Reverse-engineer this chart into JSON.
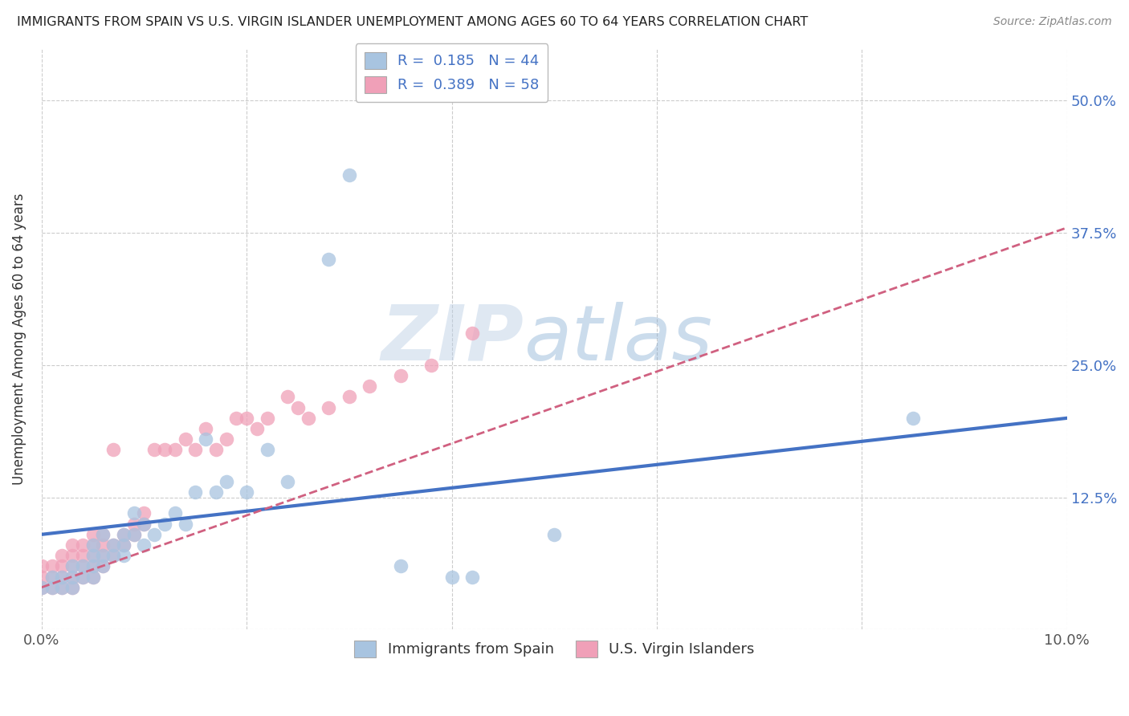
{
  "title": "IMMIGRANTS FROM SPAIN VS U.S. VIRGIN ISLANDER UNEMPLOYMENT AMONG AGES 60 TO 64 YEARS CORRELATION CHART",
  "source": "Source: ZipAtlas.com",
  "ylabel": "Unemployment Among Ages 60 to 64 years",
  "xlim": [
    0.0,
    0.1
  ],
  "ylim": [
    0.0,
    0.55
  ],
  "x_ticks": [
    0.0,
    0.02,
    0.04,
    0.06,
    0.08,
    0.1
  ],
  "x_tick_labels": [
    "0.0%",
    "",
    "",
    "",
    "",
    "10.0%"
  ],
  "y_ticks": [
    0.0,
    0.125,
    0.25,
    0.375,
    0.5
  ],
  "y_tick_labels": [
    "",
    "12.5%",
    "25.0%",
    "37.5%",
    "50.0%"
  ],
  "legend1_label": "R =  0.185   N = 44",
  "legend2_label": "R =  0.389   N = 58",
  "legend_bottom_label1": "Immigrants from Spain",
  "legend_bottom_label2": "U.S. Virgin Islanders",
  "color_blue": "#a8c4e0",
  "color_pink": "#f0a0b8",
  "line_blue": "#4472c4",
  "line_pink": "#d06080",
  "spain_x": [
    0.0,
    0.001,
    0.001,
    0.002,
    0.002,
    0.003,
    0.003,
    0.003,
    0.004,
    0.004,
    0.005,
    0.005,
    0.005,
    0.005,
    0.006,
    0.006,
    0.006,
    0.007,
    0.007,
    0.008,
    0.008,
    0.008,
    0.009,
    0.009,
    0.01,
    0.01,
    0.011,
    0.012,
    0.013,
    0.014,
    0.015,
    0.016,
    0.017,
    0.018,
    0.02,
    0.022,
    0.024,
    0.028,
    0.03,
    0.035,
    0.04,
    0.042,
    0.05,
    0.085
  ],
  "spain_y": [
    0.04,
    0.04,
    0.05,
    0.04,
    0.05,
    0.04,
    0.05,
    0.06,
    0.05,
    0.06,
    0.05,
    0.06,
    0.07,
    0.08,
    0.06,
    0.07,
    0.09,
    0.07,
    0.08,
    0.07,
    0.08,
    0.09,
    0.09,
    0.11,
    0.08,
    0.1,
    0.09,
    0.1,
    0.11,
    0.1,
    0.13,
    0.18,
    0.13,
    0.14,
    0.13,
    0.17,
    0.14,
    0.35,
    0.43,
    0.06,
    0.05,
    0.05,
    0.09,
    0.2
  ],
  "usvi_x": [
    0.0,
    0.0,
    0.0,
    0.001,
    0.001,
    0.001,
    0.002,
    0.002,
    0.002,
    0.002,
    0.003,
    0.003,
    0.003,
    0.003,
    0.003,
    0.004,
    0.004,
    0.004,
    0.004,
    0.005,
    0.005,
    0.005,
    0.005,
    0.005,
    0.006,
    0.006,
    0.006,
    0.006,
    0.007,
    0.007,
    0.007,
    0.008,
    0.008,
    0.009,
    0.009,
    0.01,
    0.01,
    0.011,
    0.012,
    0.013,
    0.014,
    0.015,
    0.016,
    0.017,
    0.018,
    0.019,
    0.02,
    0.021,
    0.022,
    0.024,
    0.025,
    0.026,
    0.028,
    0.03,
    0.032,
    0.035,
    0.038,
    0.042
  ],
  "usvi_y": [
    0.04,
    0.05,
    0.06,
    0.04,
    0.05,
    0.06,
    0.04,
    0.05,
    0.06,
    0.07,
    0.04,
    0.05,
    0.06,
    0.07,
    0.08,
    0.05,
    0.06,
    0.07,
    0.08,
    0.05,
    0.06,
    0.07,
    0.08,
    0.09,
    0.06,
    0.07,
    0.08,
    0.09,
    0.07,
    0.08,
    0.17,
    0.08,
    0.09,
    0.09,
    0.1,
    0.1,
    0.11,
    0.17,
    0.17,
    0.17,
    0.18,
    0.17,
    0.19,
    0.17,
    0.18,
    0.2,
    0.2,
    0.19,
    0.2,
    0.22,
    0.21,
    0.2,
    0.21,
    0.22,
    0.23,
    0.24,
    0.25,
    0.28
  ],
  "spain_trend_x": [
    0.0,
    0.1
  ],
  "spain_trend_y": [
    0.09,
    0.2
  ],
  "usvi_trend_x": [
    0.0,
    0.1
  ],
  "usvi_trend_y": [
    0.04,
    0.38
  ]
}
